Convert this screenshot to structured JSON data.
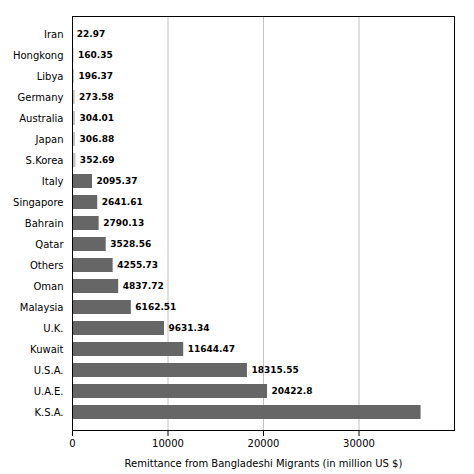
{
  "chart_data": {
    "type": "bar",
    "orientation": "horizontal",
    "categories": [
      "Iran",
      "Hongkong",
      "Libya",
      "Germany",
      "Australia",
      "Japan",
      "S.Korea",
      "Italy",
      "Singapore",
      "Bahrain",
      "Qatar",
      "Others",
      "Oman",
      "Malaysia",
      "U.K.",
      "Kuwait",
      "U.S.A.",
      "U.A.E.",
      "K.S.A."
    ],
    "values": [
      22.97,
      160.35,
      196.37,
      273.58,
      304.01,
      306.88,
      352.69,
      2095.37,
      2641.61,
      2790.13,
      3528.56,
      4255.73,
      4837.72,
      6162.51,
      9631.34,
      11644.47,
      18315.55,
      20422.8,
      36500
    ],
    "value_labels": [
      "22.97",
      "160.35",
      "196.37",
      "273.58",
      "304.01",
      "306.88",
      "352.69",
      "2095.37",
      "2641.61",
      "2790.13",
      "3528.56",
      "4255.73",
      "4837.72",
      "6162.51",
      "9631.34",
      "11644.47",
      "18315.55",
      "20422.8",
      null
    ],
    "data_labels": true,
    "colors": [
      "#c0c0c0",
      "#c0c0c0",
      "#c0c0c0",
      "#c0c0c0",
      "#c0c0c0",
      "#c0c0c0",
      "#c0c0c0",
      "#666666",
      "#666666",
      "#666666",
      "#666666",
      "#666666",
      "#666666",
      "#666666",
      "#666666",
      "#666666",
      "#666666",
      "#666666",
      "#666666"
    ],
    "xlabel": "Remittance from Bangladeshi Migrants (in million US $)",
    "xlim": [
      0,
      40000
    ],
    "xticks": [
      0,
      10000,
      20000,
      30000
    ],
    "grid": true
  }
}
